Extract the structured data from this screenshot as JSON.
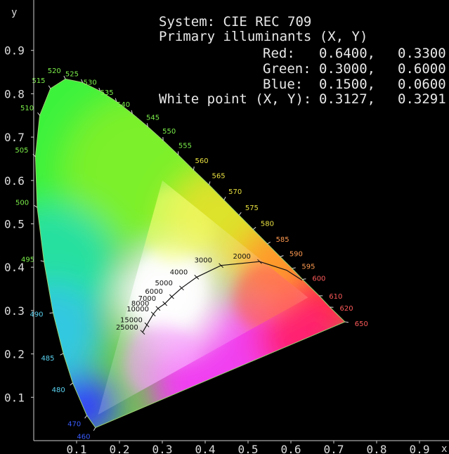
{
  "info": {
    "system_label": "System:",
    "system_value": "CIE REC 709",
    "primaries_label": "Primary illuminants (X, Y)",
    "rows": [
      {
        "label": "Red:",
        "x": "0.6400,",
        "y": "0.3300"
      },
      {
        "label": "Green:",
        "x": "0.3000,",
        "y": "0.6000"
      },
      {
        "label": "Blue:",
        "x": "0.1500,",
        "y": "0.0600"
      }
    ],
    "white_label": "White point (X, Y):",
    "white_x": "0.3127,",
    "white_y": "0.3291"
  },
  "chart_data": {
    "type": "scatter",
    "title": "",
    "xlabel": "x",
    "ylabel": "y",
    "xlim": [
      0,
      1.0
    ],
    "ylim": [
      0,
      0.95
    ],
    "x_ticks": [
      "0.1",
      "0.2",
      "0.3",
      "0.4",
      "0.5",
      "0.6",
      "0.7",
      "0.8",
      "0.9"
    ],
    "y_ticks": [
      "0.1",
      "0.2",
      "0.3",
      "0.4",
      "0.5",
      "0.6",
      "0.7",
      "0.8",
      "0.9"
    ],
    "grid": false,
    "spectral_locus": [
      {
        "nm": "460",
        "x": 0.144,
        "y": 0.03
      },
      {
        "nm": "470",
        "x": 0.124,
        "y": 0.058
      },
      {
        "nm": "480",
        "x": 0.091,
        "y": 0.133
      },
      {
        "nm": "485",
        "x": 0.069,
        "y": 0.201
      },
      {
        "nm": "490",
        "x": 0.045,
        "y": 0.295
      },
      {
        "nm": "495",
        "x": 0.024,
        "y": 0.413
      },
      {
        "nm": "500",
        "x": 0.008,
        "y": 0.538
      },
      {
        "nm": "505",
        "x": 0.004,
        "y": 0.655
      },
      {
        "nm": "510",
        "x": 0.014,
        "y": 0.75
      },
      {
        "nm": "515",
        "x": 0.039,
        "y": 0.812
      },
      {
        "nm": "520",
        "x": 0.074,
        "y": 0.834
      },
      {
        "nm": "525",
        "x": 0.114,
        "y": 0.826
      },
      {
        "nm": "530",
        "x": 0.155,
        "y": 0.806
      },
      {
        "nm": "535",
        "x": 0.193,
        "y": 0.782
      },
      {
        "nm": "540",
        "x": 0.23,
        "y": 0.754
      },
      {
        "nm": "545",
        "x": 0.266,
        "y": 0.724
      },
      {
        "nm": "550",
        "x": 0.302,
        "y": 0.692
      },
      {
        "nm": "555",
        "x": 0.337,
        "y": 0.659
      },
      {
        "nm": "560",
        "x": 0.373,
        "y": 0.624
      },
      {
        "nm": "565",
        "x": 0.409,
        "y": 0.59
      },
      {
        "nm": "570",
        "x": 0.444,
        "y": 0.555
      },
      {
        "nm": "575",
        "x": 0.479,
        "y": 0.52
      },
      {
        "nm": "580",
        "x": 0.512,
        "y": 0.487
      },
      {
        "nm": "585",
        "x": 0.545,
        "y": 0.454
      },
      {
        "nm": "590",
        "x": 0.575,
        "y": 0.424
      },
      {
        "nm": "595",
        "x": 0.603,
        "y": 0.397
      },
      {
        "nm": "600",
        "x": 0.627,
        "y": 0.372
      },
      {
        "nm": "610",
        "x": 0.666,
        "y": 0.334
      },
      {
        "nm": "620",
        "x": 0.691,
        "y": 0.308
      },
      {
        "nm": "650",
        "x": 0.726,
        "y": 0.274
      }
    ],
    "gamut_triangle": [
      {
        "name": "Red",
        "x": 0.64,
        "y": 0.33
      },
      {
        "name": "Green",
        "x": 0.3,
        "y": 0.6
      },
      {
        "name": "Blue",
        "x": 0.15,
        "y": 0.06
      }
    ],
    "white_point": {
      "x": 0.3127,
      "y": 0.3291
    },
    "planckian_locus": [
      {
        "K": "25000",
        "x": 0.254,
        "y": 0.25
      },
      {
        "K": "15000",
        "x": 0.264,
        "y": 0.267
      },
      {
        "K": "10000",
        "x": 0.279,
        "y": 0.292
      },
      {
        "K": "8000",
        "x": 0.29,
        "y": 0.305
      },
      {
        "K": "7000",
        "x": 0.306,
        "y": 0.316
      },
      {
        "K": "6000",
        "x": 0.322,
        "y": 0.332
      },
      {
        "K": "5000",
        "x": 0.345,
        "y": 0.352
      },
      {
        "K": "4000",
        "x": 0.38,
        "y": 0.377
      },
      {
        "K": "3000",
        "x": 0.437,
        "y": 0.404
      },
      {
        "K": "2000",
        "x": 0.527,
        "y": 0.413
      },
      {
        "K": "",
        "x": 0.59,
        "y": 0.393
      },
      {
        "K": "",
        "x": 0.626,
        "y": 0.37
      }
    ]
  }
}
